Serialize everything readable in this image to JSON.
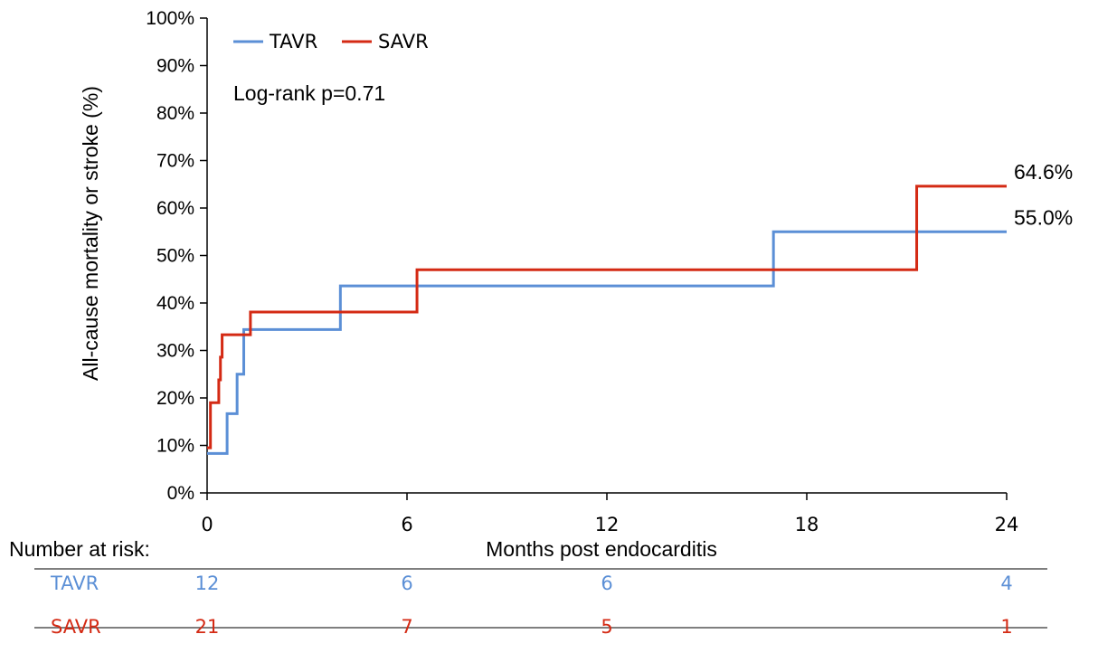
{
  "chart_data": {
    "type": "line",
    "step": true,
    "xlabel": "Months post endocarditis",
    "ylabel": "All-cause mortality or stroke (%)",
    "xlim": [
      0,
      24
    ],
    "ylim": [
      0,
      100
    ],
    "x_ticks": [
      "0",
      "6",
      "12",
      "18",
      "24"
    ],
    "y_ticks": [
      "0%",
      "10%",
      "20%",
      "30%",
      "40%",
      "50%",
      "60%",
      "70%",
      "80%",
      "90%",
      "100%"
    ],
    "grid": false,
    "legend_position": "top-left",
    "annotation": "Log-rank p=0.71",
    "series": [
      {
        "name": "TAVR",
        "color": "#5b8fd6",
        "x": [
          0,
          0.6,
          0.8,
          0.9,
          1.1,
          4.0,
          17.0,
          24.0
        ],
        "y": [
          8.3,
          16.7,
          16.7,
          25.0,
          34.4,
          43.6,
          55.0,
          55.0
        ],
        "end_label": "55.0%"
      },
      {
        "name": "SAVR",
        "color": "#d42a14",
        "x": [
          0,
          0.1,
          0.35,
          0.4,
          0.45,
          1.3,
          6.3,
          21.3,
          24.0
        ],
        "y": [
          9.5,
          19.0,
          23.8,
          28.6,
          33.3,
          38.1,
          47.0,
          64.6,
          64.6
        ],
        "end_label": "64.6%"
      }
    ],
    "risk_table": {
      "title": "Number at risk:",
      "timepoints": [
        0,
        6,
        12,
        24
      ],
      "rows": [
        {
          "label": "TAVR",
          "color": "#5b8fd6",
          "values": [
            "12",
            "6",
            "6",
            "4"
          ]
        },
        {
          "label": "SAVR",
          "color": "#d42a14",
          "values": [
            "21",
            "7",
            "5",
            "1"
          ]
        }
      ]
    }
  }
}
